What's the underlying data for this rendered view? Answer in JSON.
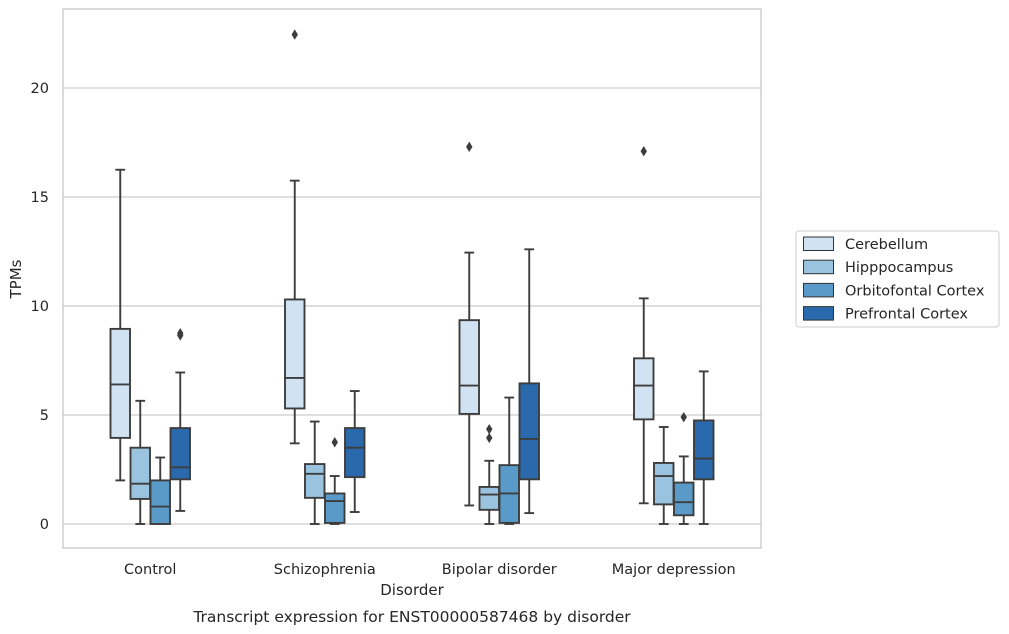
{
  "chart_data": {
    "type": "box",
    "caption": "Transcript expression for ENST00000587468 by disorder",
    "xlabel": "Disorder",
    "ylabel": "TPMs",
    "ylim": [
      -1.1,
      23.2
    ],
    "yticks": [
      0,
      5,
      10,
      15,
      20
    ],
    "grid": "horizontal",
    "legend_position": "right",
    "categories": [
      "Control",
      "Schizophrenia",
      "Bipolar disorder",
      "Major depression"
    ],
    "series": [
      {
        "name": "Cerebellum",
        "color": "#d1e2f3",
        "boxes": [
          {
            "whisker_low": 2.0,
            "q1": 3.95,
            "median": 6.4,
            "q3": 8.95,
            "whisker_high": 16.25,
            "outliers": []
          },
          {
            "whisker_low": 3.7,
            "q1": 5.3,
            "median": 6.7,
            "q3": 10.3,
            "whisker_high": 15.75,
            "outliers": [
              22.45
            ]
          },
          {
            "whisker_low": 0.85,
            "q1": 5.05,
            "median": 6.35,
            "q3": 9.35,
            "whisker_high": 12.45,
            "outliers": [
              17.3
            ]
          },
          {
            "whisker_low": 0.95,
            "q1": 4.8,
            "median": 6.35,
            "q3": 7.6,
            "whisker_high": 10.35,
            "outliers": [
              17.1
            ]
          }
        ]
      },
      {
        "name": "Hipppocampus",
        "color": "#9ac3df",
        "boxes": [
          {
            "whisker_low": 0.0,
            "q1": 1.15,
            "median": 1.85,
            "q3": 3.5,
            "whisker_high": 5.65,
            "outliers": []
          },
          {
            "whisker_low": 0.0,
            "q1": 1.2,
            "median": 2.3,
            "q3": 2.75,
            "whisker_high": 4.7,
            "outliers": []
          },
          {
            "whisker_low": 0.0,
            "q1": 0.65,
            "median": 1.35,
            "q3": 1.7,
            "whisker_high": 2.9,
            "outliers": [
              4.35,
              3.95
            ]
          },
          {
            "whisker_low": 0.0,
            "q1": 0.9,
            "median": 2.2,
            "q3": 2.8,
            "whisker_high": 4.45,
            "outliers": []
          }
        ]
      },
      {
        "name": "Orbitofontal Cortex",
        "color": "#5a9ac8",
        "boxes": [
          {
            "whisker_low": 0.0,
            "q1": 0.0,
            "median": 0.8,
            "q3": 2.0,
            "whisker_high": 3.05,
            "outliers": []
          },
          {
            "whisker_low": 0.0,
            "q1": 0.05,
            "median": 1.05,
            "q3": 1.4,
            "whisker_high": 2.2,
            "outliers": [
              3.75
            ]
          },
          {
            "whisker_low": 0.0,
            "q1": 0.05,
            "median": 1.4,
            "q3": 2.7,
            "whisker_high": 5.8,
            "outliers": []
          },
          {
            "whisker_low": 0.0,
            "q1": 0.4,
            "median": 1.0,
            "q3": 1.9,
            "whisker_high": 3.1,
            "outliers": [
              4.9
            ]
          }
        ]
      },
      {
        "name": "Prefrontal Cortex",
        "color": "#2a69ab",
        "boxes": [
          {
            "whisker_low": 0.6,
            "q1": 2.05,
            "median": 2.6,
            "q3": 4.4,
            "whisker_high": 6.95,
            "outliers": [
              8.75,
              8.65
            ]
          },
          {
            "whisker_low": 0.55,
            "q1": 2.15,
            "median": 3.5,
            "q3": 4.4,
            "whisker_high": 6.1,
            "outliers": []
          },
          {
            "whisker_low": 0.5,
            "q1": 2.05,
            "median": 3.9,
            "q3": 6.45,
            "whisker_high": 12.6,
            "outliers": []
          },
          {
            "whisker_low": 0.0,
            "q1": 2.05,
            "median": 3.0,
            "q3": 4.75,
            "whisker_high": 7.0,
            "outliers": []
          }
        ]
      }
    ]
  }
}
